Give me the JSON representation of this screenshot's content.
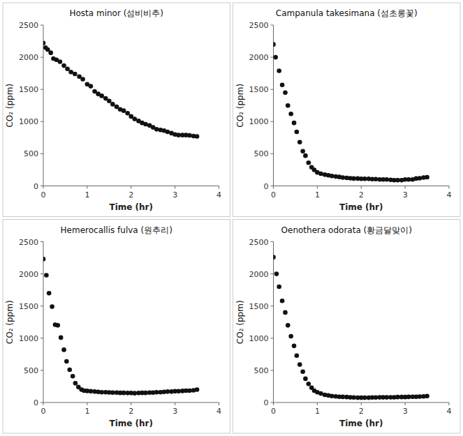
{
  "chart_data": [
    {
      "type": "scatter",
      "title": "Hosta minor (섬비비추)",
      "xlabel": "Time (hr)",
      "ylabel": "CO₂ (ppm)",
      "color": "#111111",
      "marker": "o",
      "xlim": [
        0,
        4.0
      ],
      "ylim": [
        0,
        2500
      ],
      "xticks": [
        0,
        1,
        2,
        3,
        4
      ],
      "yticks": [
        0,
        500,
        1000,
        1500,
        2000,
        2500
      ],
      "x": [
        0.0,
        0.05,
        0.1,
        0.17,
        0.23,
        0.3,
        0.38,
        0.47,
        0.55,
        0.63,
        0.72,
        0.82,
        0.9,
        1.0,
        1.08,
        1.17,
        1.25,
        1.33,
        1.42,
        1.5,
        1.58,
        1.67,
        1.75,
        1.83,
        1.92,
        2.0,
        2.08,
        2.17,
        2.25,
        2.33,
        2.42,
        2.5,
        2.58,
        2.67,
        2.75,
        2.83,
        2.92,
        3.0,
        3.08,
        3.17,
        3.25,
        3.33,
        3.42,
        3.5
      ],
      "values": [
        2220,
        2150,
        2120,
        2070,
        1980,
        1960,
        1930,
        1870,
        1820,
        1770,
        1740,
        1700,
        1660,
        1580,
        1550,
        1470,
        1430,
        1400,
        1360,
        1320,
        1270,
        1230,
        1190,
        1170,
        1130,
        1080,
        1040,
        1010,
        980,
        960,
        940,
        910,
        880,
        870,
        860,
        840,
        820,
        800,
        790,
        790,
        790,
        785,
        775,
        770
      ]
    },
    {
      "type": "scatter",
      "title": "Campanula takesimana (섬초롱꽃)",
      "xlabel": "Time (hr)",
      "ylabel": "CO₂ (ppm)",
      "color": "#111111",
      "marker": "o",
      "xlim": [
        0,
        4.0
      ],
      "ylim": [
        0,
        2500
      ],
      "xticks": [
        0,
        1,
        2,
        3,
        4
      ],
      "yticks": [
        0,
        500,
        1000,
        1500,
        2000,
        2500
      ],
      "x": [
        0.0,
        0.05,
        0.13,
        0.2,
        0.27,
        0.33,
        0.4,
        0.47,
        0.53,
        0.6,
        0.67,
        0.73,
        0.8,
        0.87,
        0.93,
        1.0,
        1.08,
        1.17,
        1.25,
        1.33,
        1.42,
        1.5,
        1.58,
        1.67,
        1.75,
        1.83,
        1.92,
        2.0,
        2.08,
        2.17,
        2.25,
        2.33,
        2.42,
        2.5,
        2.58,
        2.67,
        2.75,
        2.83,
        2.92,
        3.0,
        3.08,
        3.17,
        3.25,
        3.33,
        3.42,
        3.5
      ],
      "values": [
        2200,
        2000,
        1790,
        1570,
        1450,
        1250,
        1120,
        980,
        840,
        680,
        540,
        470,
        360,
        290,
        250,
        210,
        190,
        175,
        165,
        155,
        145,
        140,
        130,
        125,
        120,
        115,
        115,
        110,
        110,
        110,
        105,
        105,
        100,
        100,
        100,
        95,
        90,
        90,
        90,
        100,
        100,
        100,
        115,
        120,
        130,
        135
      ]
    },
    {
      "type": "scatter",
      "title": "Hemerocallis fulva (원추리)",
      "xlabel": "Time (hr)",
      "ylabel": "CO₂ (ppm)",
      "color": "#111111",
      "marker": "o",
      "xlim": [
        0,
        4.0
      ],
      "ylim": [
        0,
        2500
      ],
      "xticks": [
        0,
        1,
        2,
        3,
        4
      ],
      "yticks": [
        0,
        500,
        1000,
        1500,
        2000,
        2500
      ],
      "x": [
        0.0,
        0.07,
        0.13,
        0.2,
        0.27,
        0.33,
        0.4,
        0.47,
        0.53,
        0.6,
        0.67,
        0.73,
        0.8,
        0.87,
        0.93,
        1.0,
        1.08,
        1.17,
        1.25,
        1.33,
        1.42,
        1.5,
        1.58,
        1.67,
        1.75,
        1.83,
        1.92,
        2.0,
        2.08,
        2.17,
        2.25,
        2.33,
        2.42,
        2.5,
        2.58,
        2.67,
        2.75,
        2.83,
        2.92,
        3.0,
        3.08,
        3.17,
        3.25,
        3.33,
        3.42,
        3.5
      ],
      "values": [
        2230,
        1980,
        1700,
        1490,
        1210,
        1200,
        1010,
        820,
        640,
        510,
        410,
        300,
        240,
        200,
        185,
        180,
        175,
        170,
        165,
        160,
        160,
        158,
        155,
        155,
        150,
        150,
        148,
        148,
        145,
        148,
        150,
        150,
        155,
        155,
        160,
        160,
        165,
        170,
        170,
        175,
        175,
        180,
        185,
        185,
        190,
        200
      ]
    },
    {
      "type": "scatter",
      "title": "Oenothera odorata (황금달맞이)",
      "xlabel": "Time (hr)",
      "ylabel": "CO₂ (ppm)",
      "color": "#111111",
      "marker": "o",
      "xlim": [
        0,
        4.0
      ],
      "ylim": [
        0,
        2500
      ],
      "xticks": [
        0,
        1,
        2,
        3,
        4
      ],
      "yticks": [
        0,
        500,
        1000,
        1500,
        2000,
        2500
      ],
      "x": [
        0.0,
        0.07,
        0.13,
        0.2,
        0.27,
        0.33,
        0.4,
        0.47,
        0.53,
        0.6,
        0.67,
        0.73,
        0.8,
        0.87,
        0.93,
        1.0,
        1.08,
        1.17,
        1.25,
        1.33,
        1.42,
        1.5,
        1.58,
        1.67,
        1.75,
        1.83,
        1.92,
        2.0,
        2.08,
        2.17,
        2.25,
        2.33,
        2.42,
        2.5,
        2.58,
        2.67,
        2.75,
        2.83,
        2.92,
        3.0,
        3.08,
        3.17,
        3.25,
        3.33,
        3.42,
        3.5
      ],
      "values": [
        2260,
        2000,
        1800,
        1580,
        1400,
        1200,
        1030,
        880,
        730,
        590,
        480,
        370,
        290,
        230,
        185,
        160,
        140,
        120,
        110,
        100,
        95,
        90,
        88,
        85,
        80,
        78,
        75,
        75,
        75,
        75,
        78,
        78,
        80,
        80,
        80,
        82,
        82,
        85,
        85,
        85,
        88,
        90,
        90,
        92,
        95,
        100
      ]
    }
  ]
}
